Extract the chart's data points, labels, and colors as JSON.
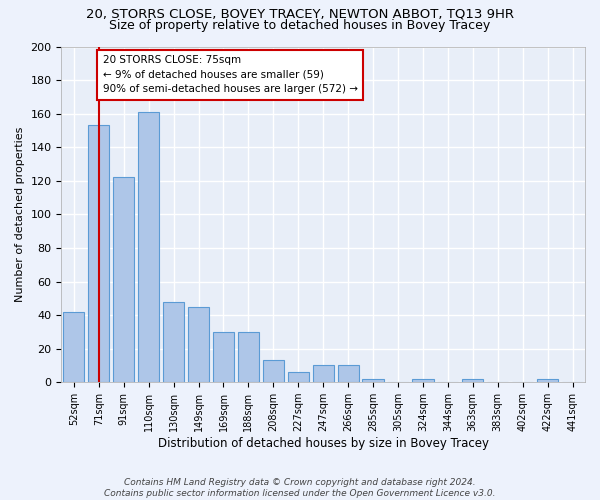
{
  "title_line1": "20, STORRS CLOSE, BOVEY TRACEY, NEWTON ABBOT, TQ13 9HR",
  "title_line2": "Size of property relative to detached houses in Bovey Tracey",
  "xlabel": "Distribution of detached houses by size in Bovey Tracey",
  "ylabel": "Number of detached properties",
  "categories": [
    "52sqm",
    "71sqm",
    "91sqm",
    "110sqm",
    "130sqm",
    "149sqm",
    "169sqm",
    "188sqm",
    "208sqm",
    "227sqm",
    "247sqm",
    "266sqm",
    "285sqm",
    "305sqm",
    "324sqm",
    "344sqm",
    "363sqm",
    "383sqm",
    "402sqm",
    "422sqm",
    "441sqm"
  ],
  "values": [
    42,
    153,
    122,
    161,
    48,
    45,
    30,
    30,
    13,
    6,
    10,
    10,
    2,
    0,
    2,
    0,
    2,
    0,
    0,
    2,
    0
  ],
  "bar_color": "#aec6e8",
  "bar_edge_color": "#5b9bd5",
  "vline_x": 1,
  "vline_color": "#cc0000",
  "annotation_line1": "20 STORRS CLOSE: 75sqm",
  "annotation_line2": "← 9% of detached houses are smaller (59)",
  "annotation_line3": "90% of semi-detached houses are larger (572) →",
  "annotation_box_color": "#ffffff",
  "annotation_box_edge": "#cc0000",
  "ylim": [
    0,
    200
  ],
  "yticks": [
    0,
    20,
    40,
    60,
    80,
    100,
    120,
    140,
    160,
    180,
    200
  ],
  "bg_color": "#e8eef8",
  "fig_bg_color": "#edf2fc",
  "grid_color": "#ffffff",
  "footer": "Contains HM Land Registry data © Crown copyright and database right 2024.\nContains public sector information licensed under the Open Government Licence v3.0.",
  "title_fontsize": 9.5,
  "subtitle_fontsize": 9,
  "bar_width": 0.85
}
